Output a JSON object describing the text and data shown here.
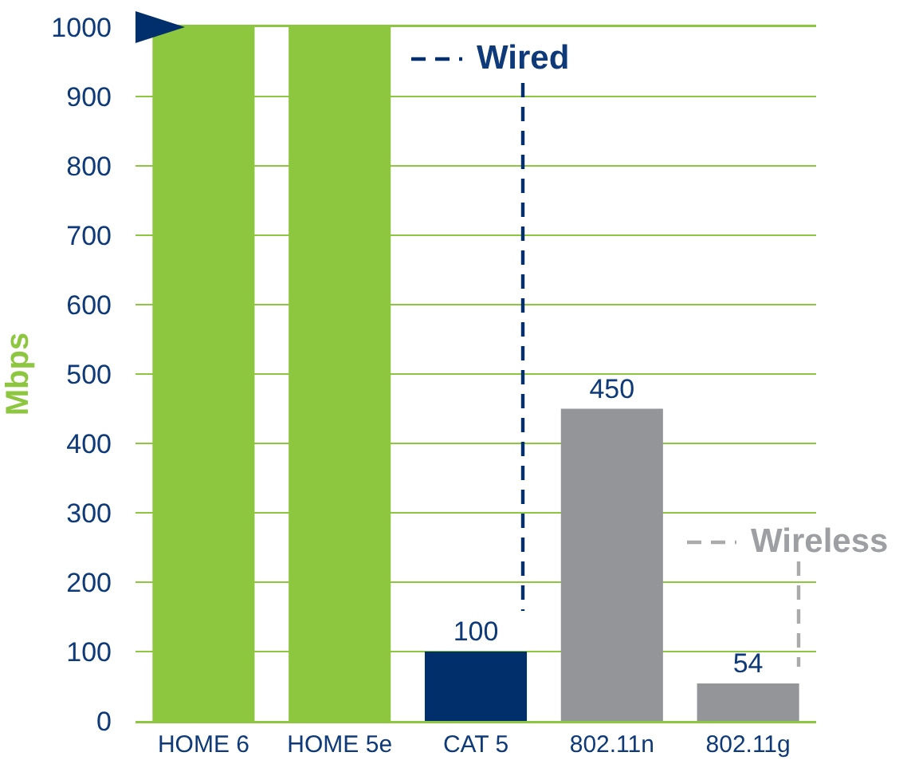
{
  "chart_data": {
    "type": "bar",
    "ylabel": "Mbps",
    "categories": [
      "HOME 6",
      "HOME 5e",
      "CAT 5",
      "802.11n",
      "802.11g"
    ],
    "values": [
      1000,
      1000,
      100,
      450,
      54
    ],
    "colors": [
      "#8dc63f",
      "#8dc63f",
      "#002f6c",
      "#939598",
      "#939598"
    ],
    "value_labels": [
      null,
      null,
      "100",
      "450",
      "54"
    ],
    "ylim": [
      0,
      1000
    ],
    "yticks": [
      0,
      100,
      200,
      300,
      400,
      500,
      600,
      700,
      800,
      900,
      1000
    ],
    "grid": "y",
    "annotations": [
      "Wired",
      "Wireless"
    ]
  }
}
